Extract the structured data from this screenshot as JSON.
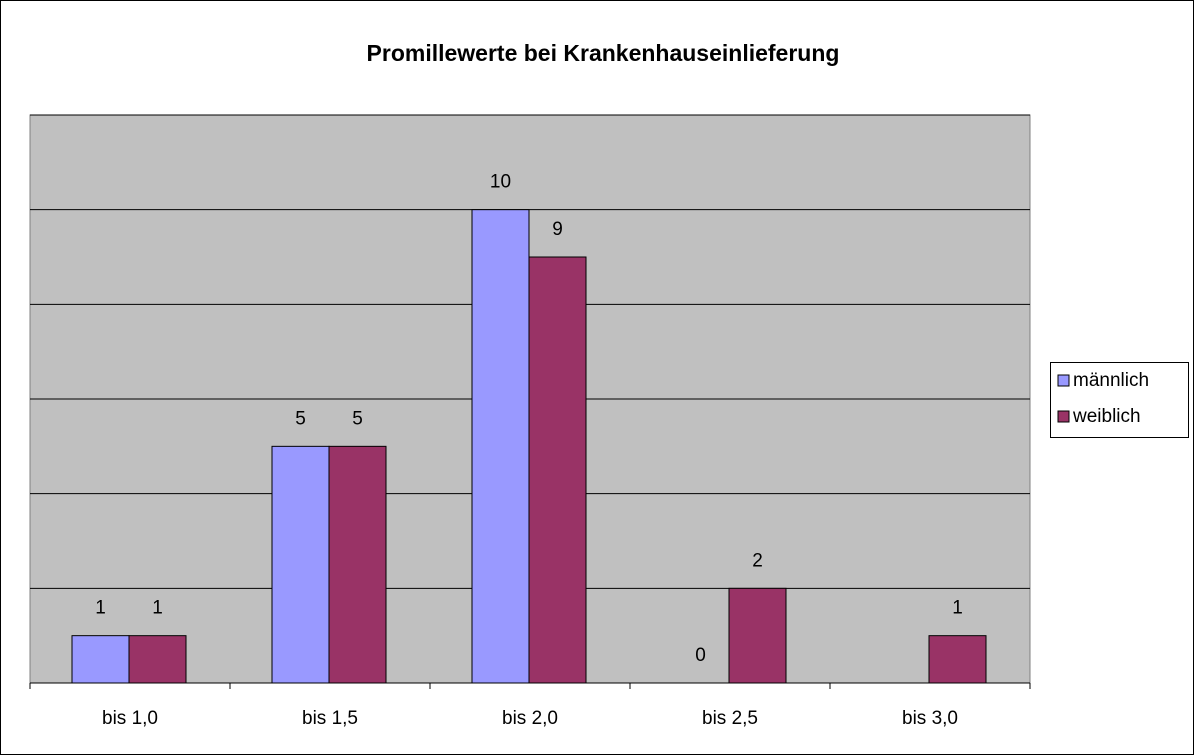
{
  "chart_data": {
    "type": "bar",
    "title": "Promillewerte bei Krankenhauseinlieferung",
    "categories": [
      "bis 1,0",
      "bis 1,5",
      "bis 2,0",
      "bis 2,5",
      "bis 3,0"
    ],
    "series": [
      {
        "name": "männlich",
        "color": "#9999ff",
        "values": [
          1,
          5,
          10,
          0,
          null
        ]
      },
      {
        "name": "weiblich",
        "color": "#993366",
        "values": [
          1,
          5,
          9,
          2,
          1
        ]
      }
    ],
    "ylim": [
      0,
      12
    ],
    "yticks": [
      0,
      2,
      4,
      6,
      8,
      10,
      12
    ],
    "grid": true,
    "legend": "right"
  }
}
